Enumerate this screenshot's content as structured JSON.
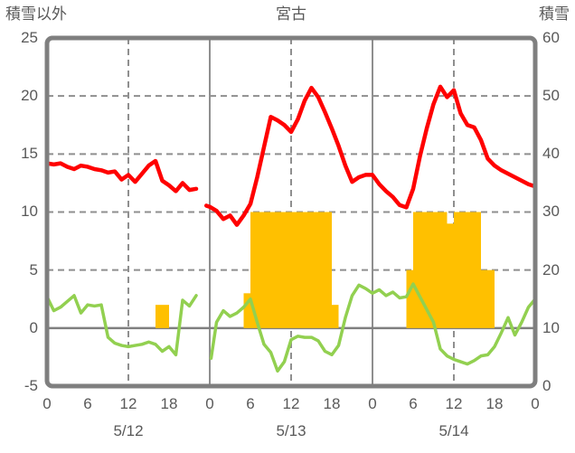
{
  "header": {
    "left_axis_title": "積雪以外",
    "station_title": "宮古",
    "right_axis_title": "積雪"
  },
  "axes": {
    "left": {
      "ticks": [
        "25",
        "20",
        "15",
        "10",
        "5",
        "0",
        "-5"
      ]
    },
    "right": {
      "ticks": [
        "60",
        "50",
        "40",
        "30",
        "20",
        "10",
        "0"
      ]
    },
    "x": {
      "hour_ticks": [
        "0",
        "6",
        "12",
        "18",
        "0",
        "6",
        "12",
        "18",
        "0",
        "6",
        "12",
        "18",
        "0"
      ],
      "day_labels": [
        "5/12",
        "5/13",
        "5/14"
      ]
    }
  },
  "colors": {
    "red_line": "#ff0000",
    "green_line": "#92d050",
    "bar": "#ffc000",
    "grid": "#8f8f8f",
    "border": "#7f7f7f",
    "text": "#595959",
    "background": "#ffffff"
  },
  "chart_data": {
    "type": "mixed",
    "title": "宮古",
    "subtitle_left": "積雪以外",
    "subtitle_right": "積雪",
    "x": {
      "unit": "hours",
      "range": [
        0,
        72
      ],
      "tick_interval": 6,
      "dashed_lines": [
        12,
        36,
        60
      ],
      "day_boundaries": [
        24,
        48
      ],
      "day_labels": [
        "5/12",
        "5/13",
        "5/14"
      ]
    },
    "left_axis": {
      "label": "積雪以外",
      "range": [
        -5,
        25
      ],
      "gridlines": [
        20,
        15,
        10,
        5
      ],
      "zero_line": 0
    },
    "right_axis": {
      "label": "積雪",
      "range": [
        0,
        60
      ],
      "note": "right value = (left value + 5) x 2"
    },
    "style": {
      "grid": "#8f8f8f",
      "zero": "#7f7f7f",
      "border": "#7f7f7f"
    },
    "series": [
      {
        "name": "snow-bars",
        "type": "bar",
        "axis": "left",
        "color": "#ffc000",
        "baseline": 0,
        "values": [
          [
            16,
            2
          ],
          [
            17,
            2
          ],
          [
            29,
            3
          ],
          [
            30,
            10
          ],
          [
            31,
            10
          ],
          [
            32,
            10
          ],
          [
            33,
            10
          ],
          [
            34,
            10
          ],
          [
            35,
            10
          ],
          [
            36,
            10
          ],
          [
            37,
            10
          ],
          [
            38,
            10
          ],
          [
            39,
            10
          ],
          [
            40,
            10
          ],
          [
            41,
            10
          ],
          [
            42,
            2
          ],
          [
            53,
            5
          ],
          [
            54,
            10
          ],
          [
            55,
            10
          ],
          [
            56,
            10
          ],
          [
            57,
            10
          ],
          [
            58,
            10
          ],
          [
            59,
            9
          ],
          [
            60,
            10
          ],
          [
            61,
            10
          ],
          [
            62,
            10
          ],
          [
            63,
            10
          ],
          [
            64,
            5
          ],
          [
            65,
            5
          ]
        ]
      },
      {
        "name": "green-line",
        "type": "line",
        "axis": "left",
        "color": "#92d050",
        "width": 3.5,
        "segments": [
          [
            [
              0,
              2.7
            ],
            [
              1,
              1.5
            ],
            [
              2,
              1.8
            ],
            [
              3,
              2.3
            ],
            [
              4,
              2.8
            ],
            [
              5,
              1.3
            ],
            [
              6,
              2.0
            ],
            [
              7,
              1.9
            ],
            [
              8,
              2.0
            ],
            [
              9,
              -0.8
            ],
            [
              10,
              -1.3
            ],
            [
              11,
              -1.5
            ],
            [
              12,
              -1.6
            ],
            [
              13,
              -1.5
            ],
            [
              14,
              -1.4
            ],
            [
              15,
              -1.2
            ],
            [
              16,
              -1.4
            ],
            [
              17,
              -2.0
            ],
            [
              18,
              -1.6
            ],
            [
              19,
              -2.3
            ],
            [
              20,
              2.4
            ],
            [
              21,
              1.9
            ],
            [
              22,
              2.8
            ]
          ],
          [
            [
              24.2,
              -2.6
            ],
            [
              25,
              0.5
            ],
            [
              26,
              1.5
            ],
            [
              27,
              1.0
            ],
            [
              28,
              1.3
            ],
            [
              29,
              1.8
            ],
            [
              30,
              2.5
            ],
            [
              31,
              0.5
            ],
            [
              32,
              -1.4
            ],
            [
              33,
              -2.1
            ],
            [
              34,
              -3.7
            ],
            [
              35,
              -2.9
            ],
            [
              36,
              -1.0
            ],
            [
              37,
              -0.7
            ],
            [
              38,
              -0.8
            ],
            [
              39,
              -0.8
            ],
            [
              40,
              -1.1
            ],
            [
              41,
              -2.0
            ],
            [
              42,
              -2.3
            ],
            [
              43,
              -1.5
            ],
            [
              44,
              0.9
            ],
            [
              45,
              2.8
            ],
            [
              46,
              3.7
            ],
            [
              47,
              3.4
            ],
            [
              48,
              3.0
            ],
            [
              49,
              3.3
            ],
            [
              50,
              2.8
            ],
            [
              51,
              3.1
            ],
            [
              52,
              2.6
            ],
            [
              53,
              2.7
            ],
            [
              54,
              3.8
            ],
            [
              55,
              2.7
            ],
            [
              56,
              1.6
            ],
            [
              57,
              0.5
            ],
            [
              58,
              -1.8
            ],
            [
              59,
              -2.4
            ],
            [
              60,
              -2.7
            ],
            [
              61,
              -2.9
            ],
            [
              62,
              -3.1
            ],
            [
              63,
              -2.8
            ],
            [
              64,
              -2.4
            ],
            [
              65,
              -2.3
            ],
            [
              66,
              -1.6
            ],
            [
              67,
              -0.4
            ],
            [
              68,
              0.9
            ],
            [
              69,
              -0.6
            ],
            [
              70,
              0.5
            ],
            [
              71,
              1.8
            ],
            [
              72,
              2.5
            ]
          ]
        ]
      },
      {
        "name": "red-line",
        "type": "line",
        "axis": "left",
        "color": "#ff0000",
        "width": 4.5,
        "segments": [
          [
            [
              0,
              14.2
            ],
            [
              1,
              14.1
            ],
            [
              2,
              14.2
            ],
            [
              3,
              13.9
            ],
            [
              4,
              13.7
            ],
            [
              5,
              14.0
            ],
            [
              6,
              13.9
            ],
            [
              7,
              13.7
            ],
            [
              8,
              13.6
            ],
            [
              9,
              13.4
            ],
            [
              10,
              13.5
            ],
            [
              11,
              12.8
            ],
            [
              12,
              13.2
            ],
            [
              13,
              12.6
            ],
            [
              14,
              13.3
            ],
            [
              15,
              14.0
            ],
            [
              16,
              14.4
            ],
            [
              17,
              12.7
            ],
            [
              18,
              12.3
            ],
            [
              19,
              11.8
            ],
            [
              20,
              12.5
            ],
            [
              21,
              11.9
            ],
            [
              22,
              12.0
            ]
          ],
          [
            [
              23.5,
              10.55
            ],
            [
              24,
              10.45
            ],
            [
              25,
              10.1
            ],
            [
              26,
              9.4
            ],
            [
              27,
              9.7
            ],
            [
              28,
              8.9
            ],
            [
              29,
              9.7
            ],
            [
              30,
              10.7
            ],
            [
              31,
              13.0
            ],
            [
              32,
              15.6
            ],
            [
              33,
              18.2
            ],
            [
              34,
              17.9
            ],
            [
              35,
              17.5
            ],
            [
              36,
              16.9
            ],
            [
              37,
              18.0
            ],
            [
              38,
              19.6
            ],
            [
              39,
              20.7
            ],
            [
              40,
              19.9
            ],
            [
              41,
              18.6
            ],
            [
              42,
              17.2
            ],
            [
              43,
              15.7
            ],
            [
              44,
              14.0
            ],
            [
              45,
              12.6
            ],
            [
              46,
              13.0
            ],
            [
              47,
              13.2
            ],
            [
              48,
              13.2
            ],
            [
              49,
              12.4
            ],
            [
              50,
              11.8
            ],
            [
              51,
              11.3
            ],
            [
              52,
              10.6
            ],
            [
              53,
              10.4
            ],
            [
              54,
              12.0
            ],
            [
              55,
              14.8
            ],
            [
              56,
              17.2
            ],
            [
              57,
              19.3
            ],
            [
              58,
              20.8
            ],
            [
              59,
              19.9
            ],
            [
              60,
              20.5
            ],
            [
              61,
              18.5
            ],
            [
              62,
              17.5
            ],
            [
              63,
              17.3
            ],
            [
              64,
              16.2
            ],
            [
              65,
              14.6
            ],
            [
              66,
              14.0
            ],
            [
              67,
              13.6
            ],
            [
              68,
              13.3
            ],
            [
              69,
              13.0
            ],
            [
              70,
              12.7
            ],
            [
              71,
              12.4
            ],
            [
              72,
              12.2
            ]
          ]
        ]
      }
    ]
  }
}
